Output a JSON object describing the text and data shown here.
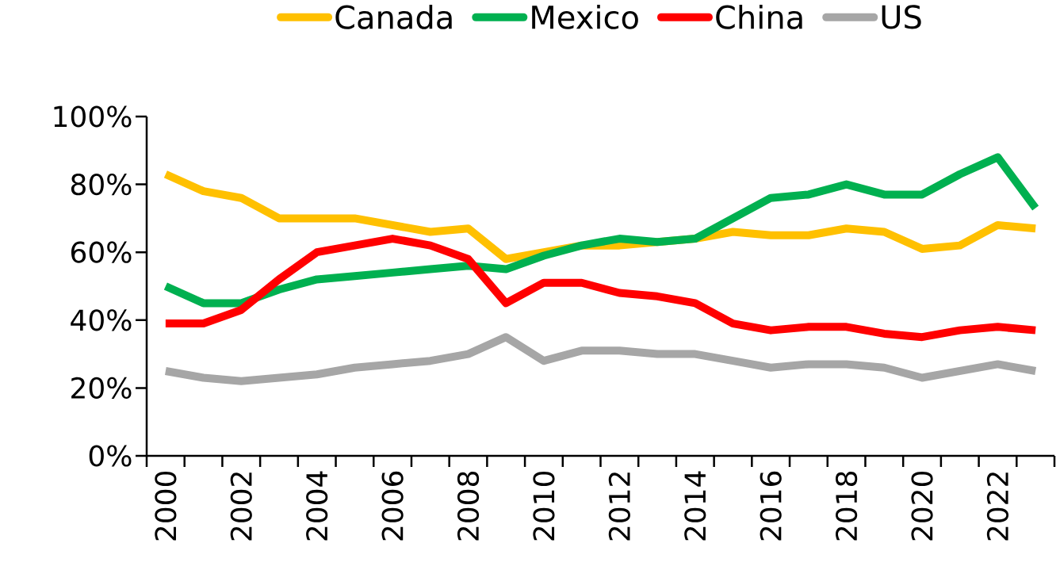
{
  "chart_data": {
    "type": "line",
    "categories": [
      "2000",
      null,
      "2002",
      null,
      "2004",
      null,
      "2006",
      null,
      "2008",
      null,
      "2010",
      null,
      "2012",
      null,
      "2014",
      null,
      "2016",
      null,
      "2018",
      null,
      "2020",
      null,
      "2022",
      null
    ],
    "series": [
      {
        "name": "Canada",
        "color": "#ffc000",
        "values": [
          83,
          78,
          76,
          70,
          70,
          70,
          68,
          66,
          67,
          58,
          60,
          62,
          62,
          63,
          64,
          66,
          65,
          65,
          67,
          66,
          61,
          62,
          68,
          67
        ]
      },
      {
        "name": "Mexico",
        "color": "#00b050",
        "values": [
          50,
          45,
          45,
          49,
          52,
          53,
          54,
          55,
          56,
          55,
          59,
          62,
          64,
          63,
          64,
          70,
          76,
          77,
          80,
          77,
          77,
          83,
          88,
          73
        ]
      },
      {
        "name": "China",
        "color": "#ff0000",
        "values": [
          39,
          39,
          43,
          52,
          60,
          62,
          64,
          62,
          58,
          45,
          51,
          51,
          48,
          47,
          45,
          39,
          37,
          38,
          38,
          36,
          35,
          37,
          38,
          37
        ]
      },
      {
        "name": "US",
        "color": "#a6a6a6",
        "values": [
          25,
          23,
          22,
          23,
          24,
          26,
          27,
          28,
          30,
          35,
          28,
          31,
          31,
          30,
          30,
          28,
          26,
          27,
          27,
          26,
          23,
          25,
          27,
          25
        ]
      }
    ],
    "ylim": [
      0,
      100
    ],
    "yticks": [
      {
        "value": 0,
        "label": "0%"
      },
      {
        "value": 20,
        "label": "20%"
      },
      {
        "value": 40,
        "label": "40%"
      },
      {
        "value": 60,
        "label": "60%"
      },
      {
        "value": 80,
        "label": "80%"
      },
      {
        "value": 100,
        "label": "100%"
      }
    ],
    "grid": false,
    "legend": "top",
    "marker": "none",
    "line_style": "solid"
  }
}
